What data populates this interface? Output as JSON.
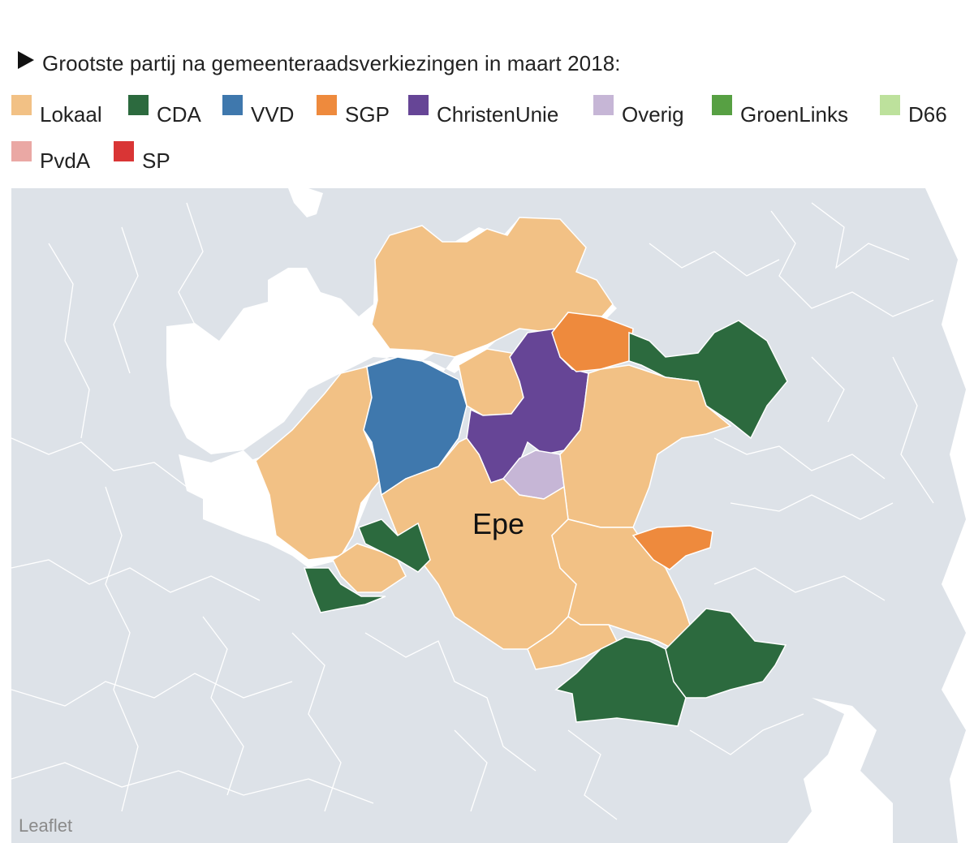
{
  "header": {
    "title": "Grootste partij na gemeenteraadsverkiezingen in maart 2018:"
  },
  "legend": [
    {
      "label": "Lokaal",
      "color": "#f2c185"
    },
    {
      "label": "CDA",
      "color": "#2c6a3e"
    },
    {
      "label": "VVD",
      "color": "#3f78ad"
    },
    {
      "label": "SGP",
      "color": "#ee8a3d"
    },
    {
      "label": "ChristenUnie",
      "color": "#664596"
    },
    {
      "label": "Overig",
      "color": "#c6b6d6"
    },
    {
      "label": "GroenLinks",
      "color": "#57a043"
    },
    {
      "label": "D66",
      "color": "#bde19c"
    },
    {
      "label": "PvdA",
      "color": "#eaa8a4"
    },
    {
      "label": "SP",
      "color": "#d93535"
    }
  ],
  "map": {
    "highlight_label": "Epe",
    "attribution": "Leaflet",
    "base_color": "#dde2e8",
    "water_color": "#ffffff"
  }
}
